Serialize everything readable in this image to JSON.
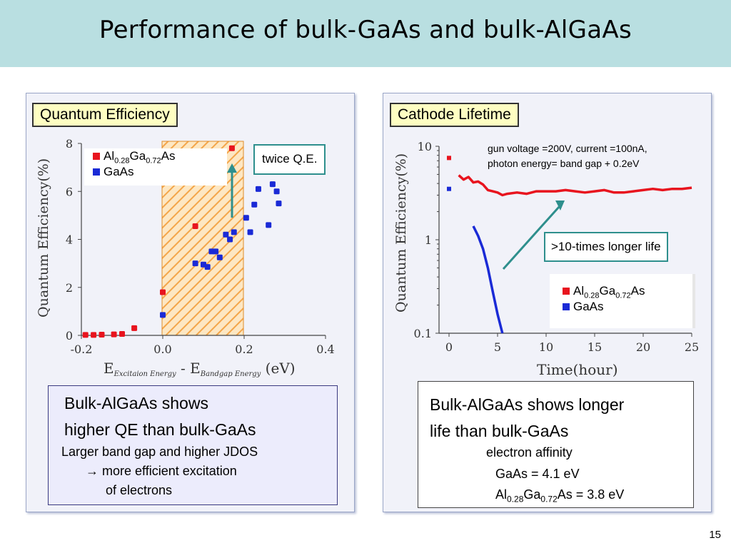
{
  "slide": {
    "title": "Performance of bulk-GaAs and bulk-AlGaAs",
    "page_number": "15",
    "header_color": "#b9dfe1"
  },
  "left": {
    "label": "Quantum Efficiency",
    "callout": "twice Q.E.",
    "legend": [
      {
        "parts": [
          "Al",
          "0.28",
          "Ga",
          "0.72",
          "As"
        ],
        "color": "#e8141e"
      },
      {
        "parts": [
          "GaAs"
        ],
        "color": "#1a2ad6"
      }
    ],
    "summary": {
      "headline_line1": "Bulk-AlGaAs shows",
      "headline_line2": "higher QE than bulk-GaAs",
      "detail_line1": "Larger band gap and higher JDOS",
      "detail_arrow": "→",
      "detail_line2": " more efficient excitation",
      "detail_line3": "of electrons"
    }
  },
  "right": {
    "label": "Cathode Lifetime",
    "note_line1": "gun voltage =200V, current =100nA,",
    "note_line2": "photon energy= band gap + 0.2eV",
    "callout": ">10-times longer life",
    "legend": [
      {
        "parts": [
          "Al",
          "0.28",
          "Ga",
          "0.72",
          "As"
        ],
        "color": "#e8141e"
      },
      {
        "parts": [
          "GaAs"
        ],
        "color": "#1a2ad6"
      }
    ],
    "summary": {
      "headline_line1": "Bulk-AlGaAs shows longer",
      "headline_line2": "life than bulk-GaAs",
      "detail_line1": "electron affinity",
      "detail_line2": "GaAs = 4.1 eV",
      "alg_parts": [
        "Al",
        "0.28",
        "Ga",
        "0.72",
        "As = 3.8 eV"
      ]
    }
  },
  "chart_data": [
    {
      "type": "scatter",
      "xlabel_parts": [
        "E",
        "Excitaion Energy",
        " - E",
        "Bandgap Energy",
        " (eV)"
      ],
      "ylabel": "Quantum Efficiency(%)",
      "xlim": [
        -0.2,
        0.4
      ],
      "ylim": [
        0,
        8
      ],
      "xticks": [
        "-0.2",
        "0.0",
        "0.2",
        "0.4"
      ],
      "yticks": [
        "0",
        "2",
        "4",
        "6",
        "8"
      ],
      "shaded_region_x": [
        0.0,
        0.2
      ],
      "series": [
        {
          "name": "Al0.28Ga0.72As",
          "color": "#e8141e",
          "x": [
            -0.19,
            -0.17,
            -0.15,
            -0.12,
            -0.1,
            -0.07,
            0.0,
            0.08,
            0.17
          ],
          "y": [
            0.02,
            0.02,
            0.03,
            0.04,
            0.06,
            0.3,
            1.8,
            4.55,
            7.8
          ]
        },
        {
          "name": "GaAs",
          "color": "#1a2ad6",
          "x": [
            0.0,
            0.08,
            0.1,
            0.11,
            0.12,
            0.13,
            0.14,
            0.155,
            0.165,
            0.175,
            0.205,
            0.215,
            0.225,
            0.235,
            0.26,
            0.27,
            0.28,
            0.285
          ],
          "y": [
            0.85,
            3.0,
            2.95,
            2.85,
            3.5,
            3.5,
            3.25,
            4.2,
            4.0,
            4.3,
            4.9,
            4.3,
            5.45,
            6.1,
            4.6,
            6.3,
            6.0,
            5.5
          ]
        }
      ]
    },
    {
      "type": "line",
      "xlabel": "Time(hour)",
      "ylabel": "Quantum Efficiency(%)",
      "xlim": [
        0,
        25
      ],
      "ylim": [
        0.1,
        10
      ],
      "yscale": "log",
      "xticks": [
        "0",
        "5",
        "10",
        "15",
        "20",
        "25"
      ],
      "yticks": [
        "0.1",
        "1",
        "10"
      ],
      "series": [
        {
          "name": "Al0.28Ga0.72As",
          "color": "#e8141e",
          "x": [
            1.0,
            1.5,
            2.0,
            2.5,
            3.0,
            3.5,
            4.0,
            4.5,
            5.0,
            5.5,
            6,
            7,
            8,
            9,
            10,
            11,
            12,
            13,
            14,
            15,
            16,
            17,
            18,
            19,
            20,
            21,
            22,
            23,
            24,
            25
          ],
          "y": [
            4.9,
            4.4,
            4.7,
            4.1,
            4.2,
            3.9,
            3.4,
            3.3,
            3.2,
            3.0,
            3.1,
            3.2,
            3.1,
            3.3,
            3.3,
            3.3,
            3.4,
            3.3,
            3.2,
            3.3,
            3.4,
            3.2,
            3.2,
            3.3,
            3.4,
            3.5,
            3.4,
            3.5,
            3.5,
            3.6
          ]
        },
        {
          "name": "GaAs",
          "color": "#1a2ad6",
          "x": [
            2.5,
            3.0,
            3.5,
            4.0,
            4.5,
            5.0,
            5.5
          ],
          "y": [
            1.4,
            1.1,
            0.8,
            0.5,
            0.28,
            0.16,
            0.1
          ]
        },
        {
          "name": "initial",
          "color": "#e8141e",
          "x": [
            0
          ],
          "y": [
            7.5
          ]
        },
        {
          "name": "initial-gaas",
          "color": "#1a2ad6",
          "x": [
            0
          ],
          "y": [
            3.5
          ]
        }
      ]
    }
  ]
}
